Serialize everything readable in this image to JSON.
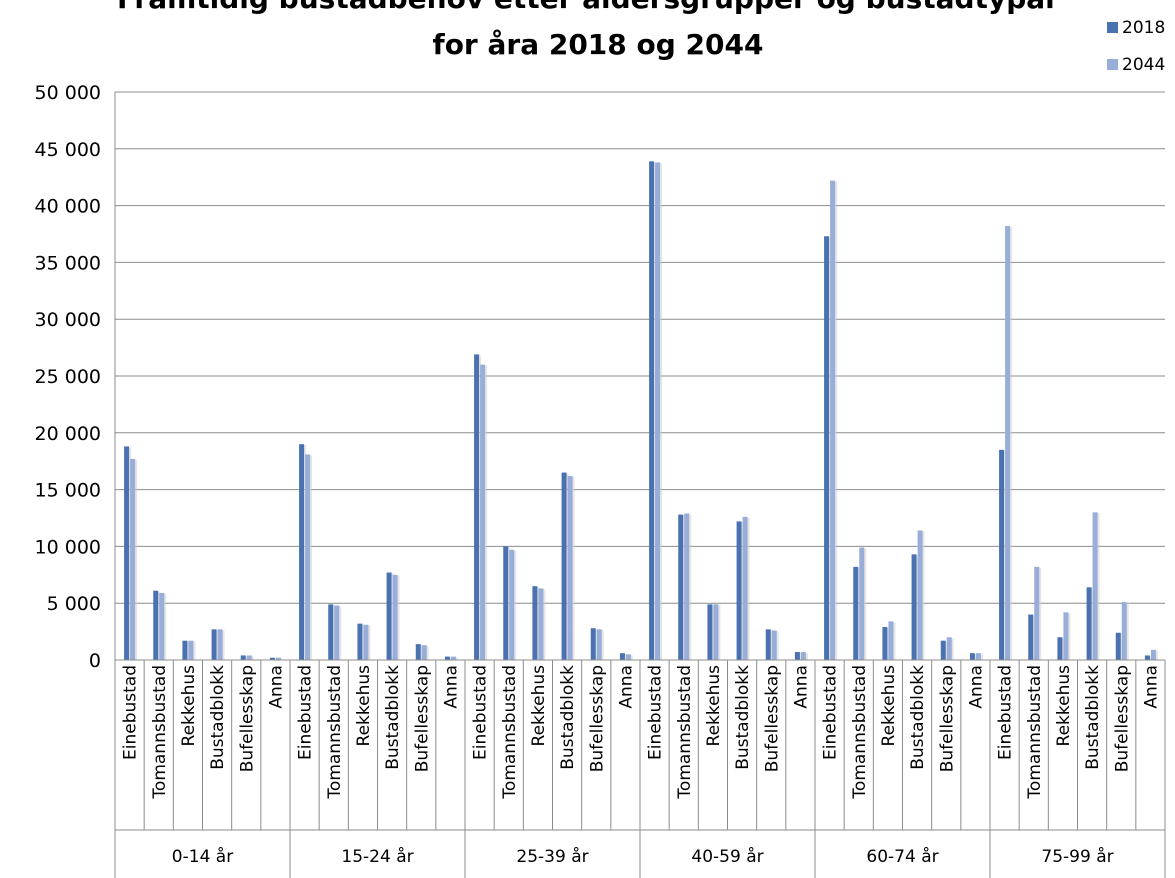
{
  "chart_data": {
    "type": "bar",
    "title_lines": [
      "Framtidig bustadbehov etter aldersgrupper og bustadtypar",
      "for åra 2018 og 2044"
    ],
    "ylim": [
      0,
      50000
    ],
    "yticks": [
      0,
      5000,
      10000,
      15000,
      20000,
      25000,
      30000,
      35000,
      40000,
      45000,
      50000
    ],
    "ytick_labels": [
      "0",
      "5 000",
      "10 000",
      "15 000",
      "20 000",
      "25 000",
      "30 000",
      "35 000",
      "40 000",
      "45 000",
      "50 000"
    ],
    "grid": true,
    "legend_position": "top-right",
    "groups": [
      "0-14 år",
      "15-24 år",
      "25-39 år",
      "40-59 år",
      "60-74 år",
      "75-99 år"
    ],
    "categories": [
      "Einebustad",
      "Tomannsbustad",
      "Rekkehus",
      "Bustadblokk",
      "Bufellesskap",
      "Anna"
    ],
    "series": [
      {
        "name": "2018",
        "color": "#4a72b0",
        "values": [
          [
            18800,
            6100,
            1700,
            2700,
            400,
            200
          ],
          [
            19000,
            4900,
            3200,
            7700,
            1400,
            300
          ],
          [
            26900,
            10000,
            6500,
            16500,
            2800,
            600
          ],
          [
            43900,
            12800,
            4900,
            12200,
            2700,
            700
          ],
          [
            37300,
            8200,
            2900,
            9300,
            1700,
            600
          ],
          [
            18500,
            4000,
            2000,
            6400,
            2400,
            400
          ]
        ]
      },
      {
        "name": "2044",
        "color": "#98aed9",
        "values": [
          [
            17700,
            5900,
            1700,
            2700,
            400,
            200
          ],
          [
            18100,
            4800,
            3100,
            7500,
            1300,
            300
          ],
          [
            26000,
            9700,
            6300,
            16200,
            2700,
            500
          ],
          [
            43800,
            12900,
            4900,
            12600,
            2600,
            700
          ],
          [
            42200,
            9900,
            3400,
            11400,
            2000,
            600
          ],
          [
            38200,
            8200,
            4200,
            13000,
            5100,
            900
          ]
        ]
      }
    ]
  }
}
